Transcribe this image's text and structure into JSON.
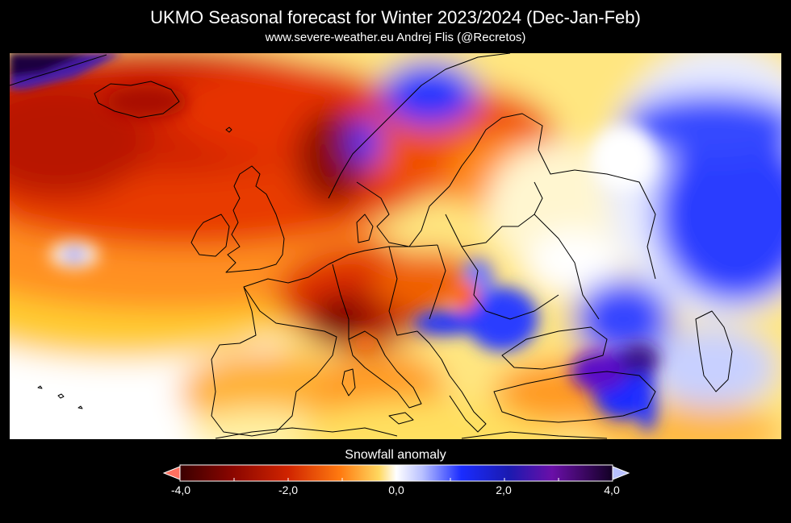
{
  "header": {
    "title": "UKMO Seasonal forecast for Winter 2023/2024 (Dec-Jan-Feb)",
    "subtitle": "www.severe-weather.eu  Andrej Flis (@Recretos)"
  },
  "map": {
    "variable": "Snowfall anomaly",
    "region": "Europe"
  },
  "legend": {
    "title": "Snowfall anomaly",
    "min": -4.0,
    "max": 4.0,
    "tick_labels": [
      "-4,0",
      "-2,0",
      "0,0",
      "2,0",
      "4,0"
    ],
    "tick_values": [
      -4,
      -2,
      0,
      2,
      4
    ],
    "colors": {
      "strong_negative": "#3a0000",
      "negative": "#c81e00",
      "weak_negative": "#ff9a1f",
      "near_zero": "#ffffff",
      "weak_positive": "#1a2cff",
      "strong_positive": "#6a0fa8",
      "extreme_positive": "#120024"
    }
  }
}
